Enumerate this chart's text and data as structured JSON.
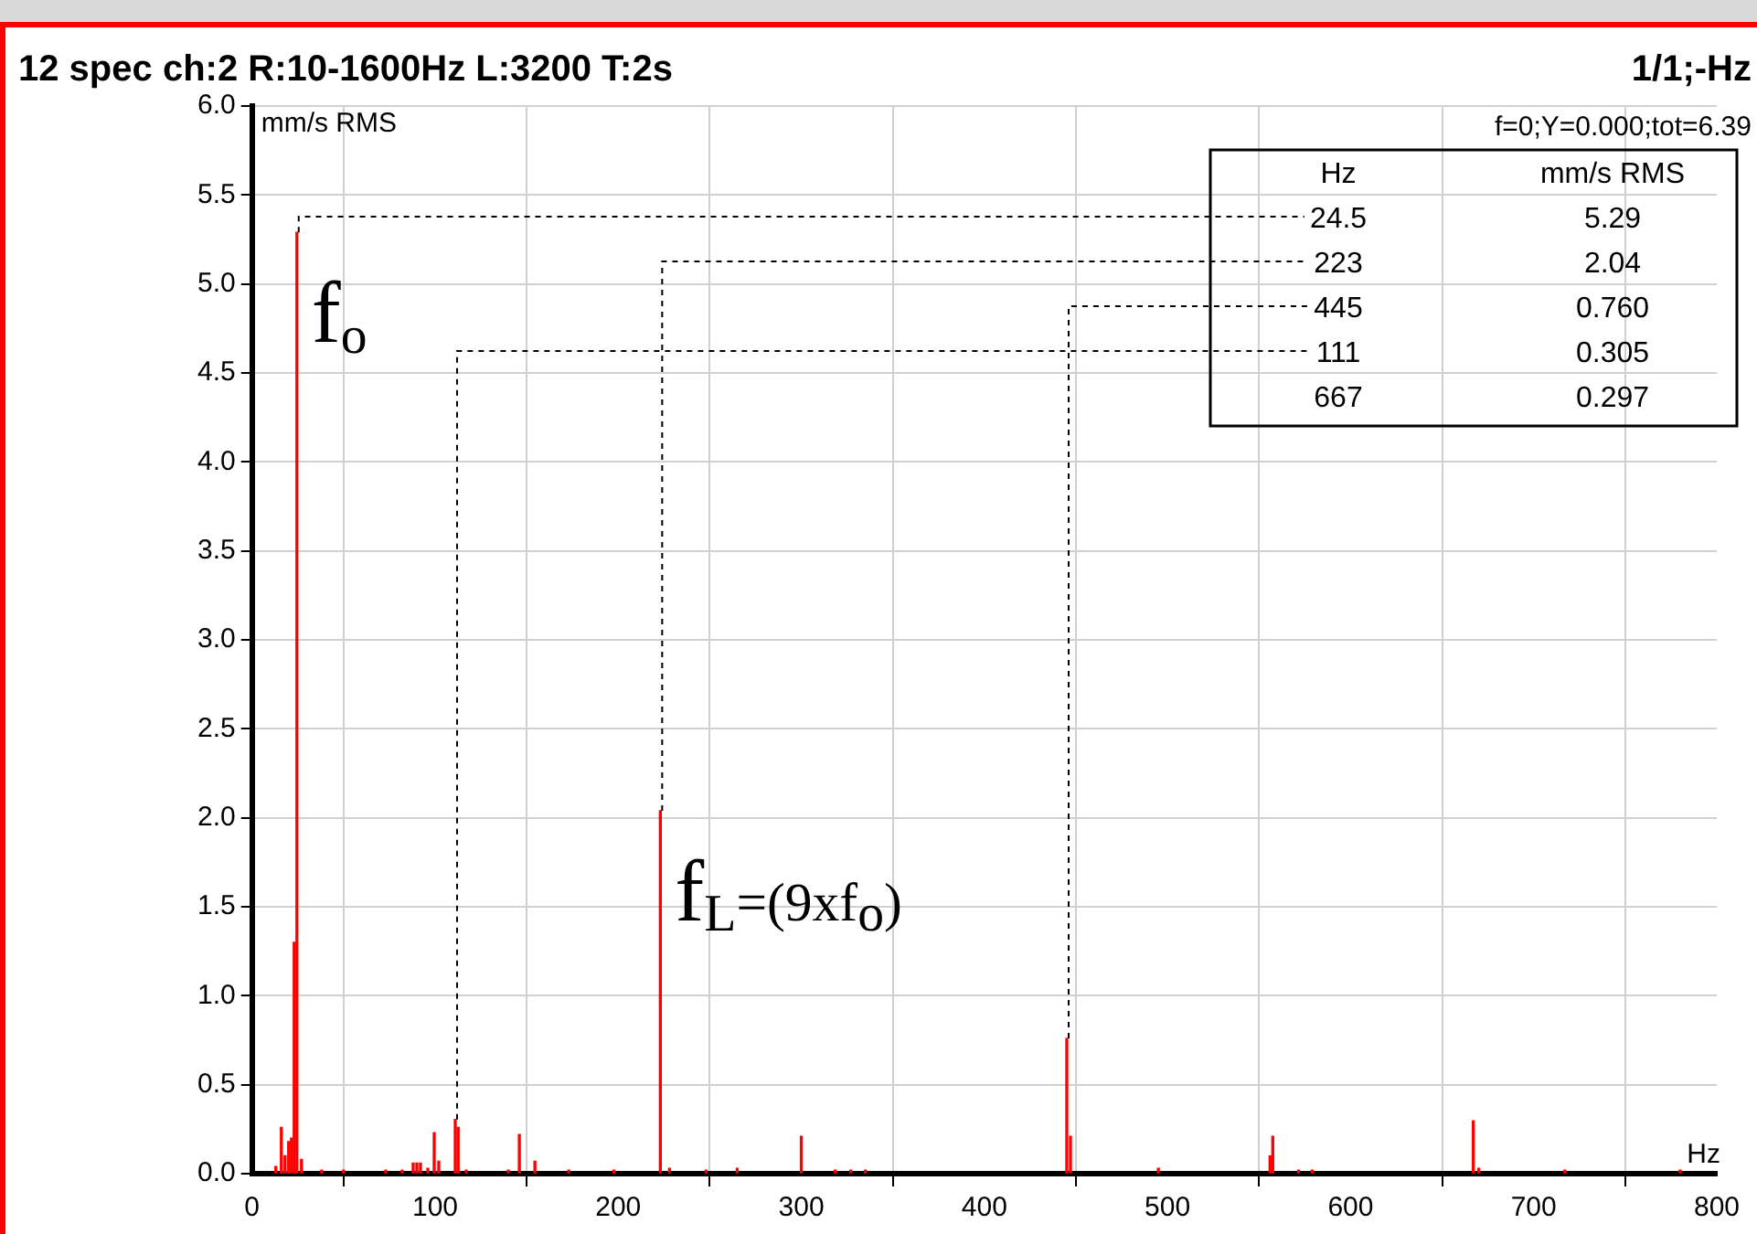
{
  "chart_data": {
    "type": "bar",
    "title": "12 spec ch:2 R:10-1600Hz L:3200 T:2s",
    "subtitle": "1/1;-Hz",
    "xlabel": "Hz",
    "ylabel": "mm/s RMS",
    "x": [
      13,
      16,
      18,
      20,
      21.5,
      23,
      24.5,
      26,
      27,
      38,
      50,
      73,
      82,
      88,
      90,
      92,
      96,
      99.5,
      102,
      111,
      112.6,
      117,
      140,
      146,
      154.5,
      173,
      197.6,
      223,
      228,
      248,
      265,
      299,
      300,
      318.5,
      327,
      335,
      445,
      447,
      495,
      556,
      557.5,
      571.6,
      579,
      667,
      670,
      717,
      780
    ],
    "series": [
      {
        "color": "#ff0000",
        "values": [
          0.04,
          0.26,
          0.1,
          0.18,
          0.2,
          1.3,
          5.29,
          null,
          0.08,
          0.02,
          0.02,
          0.02,
          0.02,
          0.06,
          0.06,
          0.06,
          0.03,
          0.23,
          0.07,
          0.305,
          0.26,
          0.02,
          0.02,
          0.22,
          0.07,
          0.02,
          0.02,
          2.04,
          0.03,
          0.02,
          0.03,
          null,
          0.21,
          0.02,
          0.02,
          0.02,
          0.76,
          0.21,
          0.03,
          0.1,
          0.21,
          0.02,
          0.02,
          0.297,
          0.03,
          0.02,
          0.02
        ]
      }
    ],
    "xlim": [
      0,
      800
    ],
    "xticks": [
      0,
      100,
      200,
      300,
      400,
      500,
      600,
      700,
      800
    ],
    "ylim": [
      0,
      6
    ],
    "yticks": [
      {
        "value": 0,
        "label": "0.0"
      },
      {
        "value": 0.5,
        "label": "0.5"
      },
      {
        "value": 1,
        "label": "1.0"
      },
      {
        "value": 1.5,
        "label": "1.5"
      },
      {
        "value": 2,
        "label": "2.0"
      },
      {
        "value": 2.5,
        "label": "2.5"
      },
      {
        "value": 3,
        "label": "3.0"
      },
      {
        "value": 3.5,
        "label": "3.5"
      },
      {
        "value": 4,
        "label": "4.0"
      },
      {
        "value": 4.5,
        "label": "4.5"
      },
      {
        "value": 5,
        "label": "5.0"
      },
      {
        "value": 5.5,
        "label": "5.5"
      },
      {
        "value": 6,
        "label": "6.0"
      }
    ],
    "grid": true,
    "legend": false,
    "annotations": [
      "f=0;Y=0.000;tot=6.39",
      "Hz",
      "mm/s RMS",
      {
        "text": "f$_{o}$",
        "x": 24.5,
        "y": 5.29
      },
      {
        "text": "f$_{L}$=(9xf$_{o}$)",
        "x": 223,
        "y": 2.04
      },
      {
        "text": "24.5",
        "x": 24.5,
        "y": 5.29
      },
      "5.29",
      {
        "text": "223",
        "x": 223,
        "y": 2.04
      },
      "2.04",
      {
        "text": "445",
        "x": 445,
        "y": 0.76
      },
      "0.760",
      {
        "text": "111",
        "x": 111,
        "y": 0.305
      },
      "0.305",
      "667",
      "0.297"
    ]
  }
}
